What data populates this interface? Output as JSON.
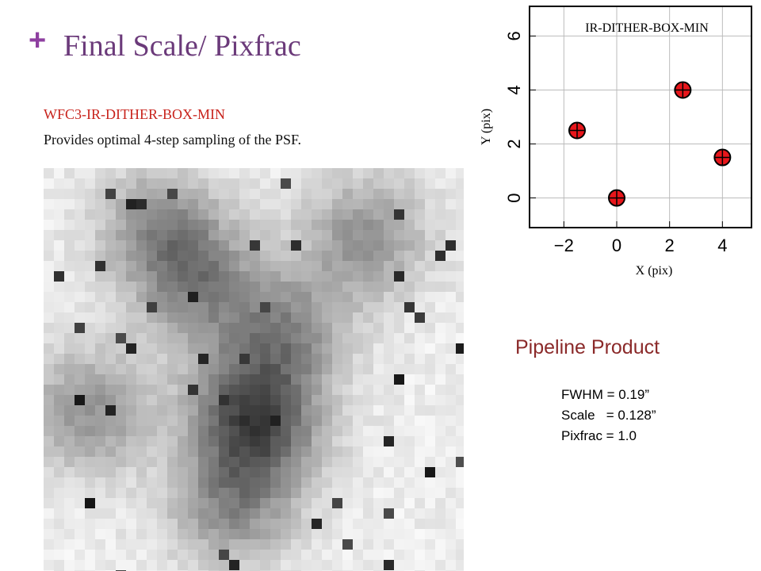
{
  "header": {
    "marker": "+",
    "title": "Final Scale/ Pixfrac"
  },
  "intro": {
    "heading": "WFC3-IR-DITHER-BOX-MIN",
    "text": "Provides optimal 4-step sampling of the PSF."
  },
  "pipeline": {
    "title": "Pipeline Product",
    "lines": [
      "FWHM = 0.19”",
      "Scale   = 0.128”",
      "Pixfrac = 1.0"
    ]
  },
  "chart_data": {
    "type": "scatter",
    "title": "IR-DITHER-BOX-MIN",
    "xlabel": "X (pix)",
    "ylabel": "Y (pix)",
    "x": [
      -1.5,
      0,
      2.5,
      4
    ],
    "values": [
      2.5,
      0,
      4,
      1.5
    ],
    "color": "#e8161b",
    "xlim": [
      -3.3,
      5.1
    ],
    "ylim": [
      -1.1,
      7.1
    ],
    "xticks": [
      {
        "value": -2,
        "label": "−2"
      },
      0,
      2,
      4
    ],
    "yticks": [
      0,
      2,
      4,
      6
    ],
    "grid": true
  }
}
